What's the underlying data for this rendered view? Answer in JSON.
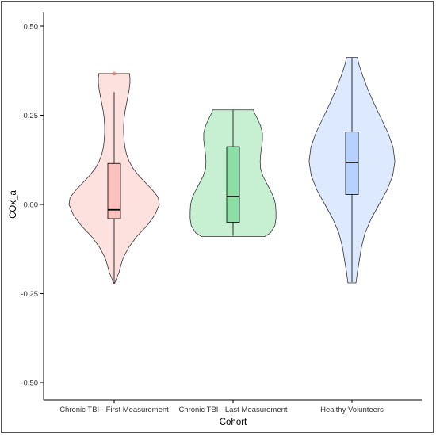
{
  "chart_data": {
    "type": "violin",
    "title": "",
    "xlabel": "Cohort",
    "ylabel": "COx_a",
    "ylim": [
      -0.55,
      0.55
    ],
    "yticks": [
      -0.5,
      -0.25,
      0.0,
      0.25,
      0.5
    ],
    "ytick_labels": [
      "-0.50",
      "-0.25",
      "0.00",
      "0.25",
      "0.50"
    ],
    "grid": false,
    "legend": "none",
    "categories": [
      "Chronic TBI - First Measurement",
      "Chronic TBI - Last Measurement",
      "Healthy Volunteers"
    ],
    "series": [
      {
        "category": "Chronic TBI - First Measurement",
        "color": "#f8766d",
        "box": {
          "min": -0.22,
          "q1": -0.04,
          "median": -0.015,
          "q3": 0.115,
          "max": 0.315
        },
        "outliers": [
          0.367
        ],
        "density": [
          [
            -0.222,
            0.002
          ],
          [
            -0.205,
            0.012
          ],
          [
            -0.19,
            0.022
          ],
          [
            -0.17,
            0.03
          ],
          [
            -0.15,
            0.04
          ],
          [
            -0.12,
            0.065
          ],
          [
            -0.09,
            0.1
          ],
          [
            -0.06,
            0.145
          ],
          [
            -0.03,
            0.18
          ],
          [
            0.0,
            0.2
          ],
          [
            0.02,
            0.195
          ],
          [
            0.04,
            0.17
          ],
          [
            0.06,
            0.14
          ],
          [
            0.08,
            0.11
          ],
          [
            0.1,
            0.085
          ],
          [
            0.12,
            0.067
          ],
          [
            0.14,
            0.055
          ],
          [
            0.16,
            0.048
          ],
          [
            0.18,
            0.044
          ],
          [
            0.2,
            0.042
          ],
          [
            0.22,
            0.042
          ],
          [
            0.24,
            0.044
          ],
          [
            0.26,
            0.048
          ],
          [
            0.28,
            0.054
          ],
          [
            0.3,
            0.06
          ],
          [
            0.32,
            0.066
          ],
          [
            0.34,
            0.07
          ],
          [
            0.355,
            0.07
          ],
          [
            0.367,
            0.068
          ]
        ]
      },
      {
        "category": "Chronic TBI - Last Measurement",
        "color": "#00ba38",
        "box": {
          "min": -0.088,
          "q1": -0.05,
          "median": 0.022,
          "q3": 0.162,
          "max": 0.265
        },
        "outliers": [],
        "density": [
          [
            -0.09,
            0.14
          ],
          [
            -0.08,
            0.165
          ],
          [
            -0.06,
            0.185
          ],
          [
            -0.04,
            0.19
          ],
          [
            -0.02,
            0.19
          ],
          [
            0.0,
            0.188
          ],
          [
            0.02,
            0.18
          ],
          [
            0.04,
            0.165
          ],
          [
            0.06,
            0.148
          ],
          [
            0.08,
            0.132
          ],
          [
            0.1,
            0.122
          ],
          [
            0.12,
            0.12
          ],
          [
            0.14,
            0.122
          ],
          [
            0.16,
            0.126
          ],
          [
            0.18,
            0.13
          ],
          [
            0.2,
            0.13
          ],
          [
            0.22,
            0.122
          ],
          [
            0.24,
            0.108
          ],
          [
            0.255,
            0.096
          ],
          [
            0.265,
            0.09
          ]
        ]
      },
      {
        "category": "Healthy Volunteers",
        "color": "#619cff",
        "box": {
          "min": -0.218,
          "q1": 0.028,
          "median": 0.118,
          "q3": 0.203,
          "max": 0.412
        },
        "outliers": [],
        "density": [
          [
            -0.22,
            0.018
          ],
          [
            -0.19,
            0.024
          ],
          [
            -0.16,
            0.032
          ],
          [
            -0.12,
            0.042
          ],
          [
            -0.08,
            0.058
          ],
          [
            -0.04,
            0.085
          ],
          [
            0.0,
            0.12
          ],
          [
            0.04,
            0.155
          ],
          [
            0.08,
            0.18
          ],
          [
            0.12,
            0.19
          ],
          [
            0.16,
            0.182
          ],
          [
            0.2,
            0.16
          ],
          [
            0.24,
            0.13
          ],
          [
            0.28,
            0.1
          ],
          [
            0.32,
            0.072
          ],
          [
            0.36,
            0.048
          ],
          [
            0.39,
            0.032
          ],
          [
            0.412,
            0.024
          ]
        ]
      }
    ]
  }
}
